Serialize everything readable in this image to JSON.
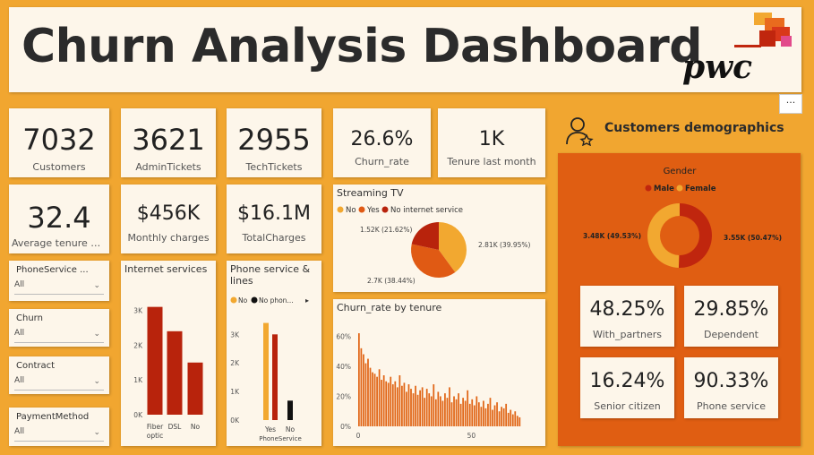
{
  "header": {
    "title": "Churn Analysis Dashboard",
    "logo_text": "pwc",
    "more_icon": "···"
  },
  "kpis": {
    "customers": {
      "value": "7032",
      "label": "Customers"
    },
    "admin": {
      "value": "3621",
      "label": "AdminTickets"
    },
    "tech": {
      "value": "2955",
      "label": "TechTickets"
    },
    "churn_rate": {
      "value": "26.6%",
      "label": "Churn_rate"
    },
    "tenure_last": {
      "value": "1K",
      "label": "Tenure last month"
    },
    "avg_tenure": {
      "value": "32.4",
      "label": "Average tenure mo..."
    },
    "monthly": {
      "value": "$456K",
      "label": "Monthly charges"
    },
    "total": {
      "value": "$16.1M",
      "label": "TotalCharges"
    }
  },
  "slicers": [
    {
      "label": "PhoneService ...",
      "value": "All"
    },
    {
      "label": "Churn",
      "value": "All"
    },
    {
      "label": "Contract",
      "value": "All"
    },
    {
      "label": "PaymentMethod",
      "value": "All"
    }
  ],
  "demographics": {
    "title": "Customers demographics",
    "icon": "user-star-icon",
    "gender_title": "Gender",
    "legend": [
      {
        "name": "Male",
        "color": "#c0260e"
      },
      {
        "name": "Female",
        "color": "#f2a830"
      }
    ],
    "left_label": "3.48K (49.53%)",
    "right_label": "3.55K (50.47%)",
    "stats": [
      {
        "value": "48.25%",
        "label": "With_partners"
      },
      {
        "value": "29.85%",
        "label": "Dependent"
      },
      {
        "value": "16.24%",
        "label": "Senior citizen"
      },
      {
        "value": "90.33%",
        "label": "Phone service"
      }
    ]
  },
  "chart_data": [
    {
      "type": "pie",
      "title": "Streaming TV",
      "legend": [
        "No",
        "Yes",
        "No internet service"
      ],
      "slices": [
        {
          "name": "No",
          "value": 2.81,
          "label": "2.81K (39.95%)",
          "color": "#f2a830"
        },
        {
          "name": "Yes",
          "value": 2.7,
          "label": "2.7K (38.44%)",
          "color": "#e05a14"
        },
        {
          "name": "No internet service",
          "value": 1.52,
          "label": "1.52K (21.62%)",
          "color": "#b8230c"
        }
      ]
    },
    {
      "type": "bar",
      "title": "Internet services",
      "categories": [
        "Fiber optic",
        "DSL",
        "No"
      ],
      "values": [
        3.1,
        2.4,
        1.5
      ],
      "yticks": [
        "0K",
        "1K",
        "2K",
        "3K"
      ],
      "ylim": [
        0,
        3.4
      ],
      "color": "#b8230c"
    },
    {
      "type": "bar",
      "title": "Phone service & lines",
      "legend": [
        "No",
        "No phon..."
      ],
      "xlabel": "PhoneService",
      "categories": [
        "Yes",
        "No"
      ],
      "series": [
        {
          "name": "No",
          "values": [
            3.4,
            0
          ],
          "color": "#f2a830"
        },
        {
          "name": "Yes",
          "values": [
            3.0,
            0
          ],
          "color": "#b8230c"
        },
        {
          "name": "No phon...",
          "values": [
            0,
            0.68
          ],
          "color": "#111111"
        }
      ],
      "yticks": [
        "0K",
        "1K",
        "2K",
        "3K"
      ],
      "ylim": [
        0,
        3.7
      ]
    },
    {
      "type": "bar",
      "title": "Churn_rate by tenure",
      "yticks": [
        "0%",
        "20%",
        "40%",
        "60%"
      ],
      "xticks": [
        "0",
        "50"
      ],
      "ylim": [
        0,
        0.68
      ],
      "values": [
        0.62,
        0.52,
        0.48,
        0.42,
        0.45,
        0.39,
        0.36,
        0.35,
        0.33,
        0.38,
        0.31,
        0.34,
        0.3,
        0.29,
        0.33,
        0.28,
        0.3,
        0.26,
        0.34,
        0.27,
        0.29,
        0.23,
        0.28,
        0.25,
        0.22,
        0.27,
        0.21,
        0.24,
        0.26,
        0.19,
        0.25,
        0.22,
        0.2,
        0.28,
        0.18,
        0.23,
        0.2,
        0.17,
        0.22,
        0.19,
        0.26,
        0.16,
        0.2,
        0.18,
        0.22,
        0.15,
        0.19,
        0.17,
        0.24,
        0.15,
        0.18,
        0.14,
        0.2,
        0.16,
        0.13,
        0.17,
        0.12,
        0.15,
        0.19,
        0.11,
        0.14,
        0.16,
        0.1,
        0.13,
        0.12,
        0.15,
        0.09,
        0.11,
        0.08,
        0.1,
        0.07,
        0.06
      ],
      "color": "#e06414"
    }
  ]
}
